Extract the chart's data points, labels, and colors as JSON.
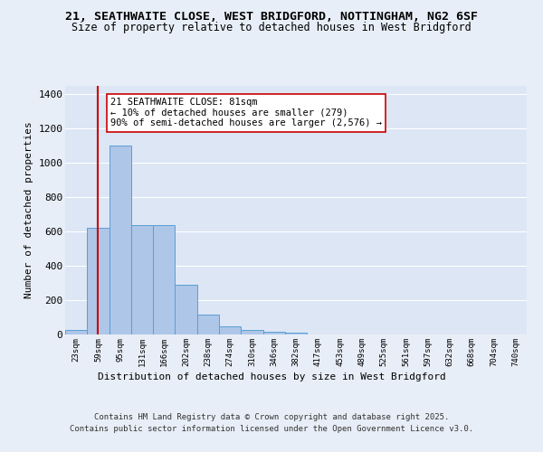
{
  "title_line1": "21, SEATHWAITE CLOSE, WEST BRIDGFORD, NOTTINGHAM, NG2 6SF",
  "title_line2": "Size of property relative to detached houses in West Bridgford",
  "xlabel": "Distribution of detached houses by size in West Bridgford",
  "ylabel": "Number of detached properties",
  "bar_labels": [
    "23sqm",
    "59sqm",
    "95sqm",
    "131sqm",
    "166sqm",
    "202sqm",
    "238sqm",
    "274sqm",
    "310sqm",
    "346sqm",
    "382sqm",
    "417sqm",
    "453sqm",
    "489sqm",
    "525sqm",
    "561sqm",
    "597sqm",
    "632sqm",
    "668sqm",
    "704sqm",
    "740sqm"
  ],
  "bar_values": [
    28,
    622,
    1100,
    637,
    637,
    290,
    115,
    47,
    28,
    18,
    10,
    0,
    0,
    0,
    0,
    0,
    0,
    0,
    0,
    0,
    0
  ],
  "bar_color": "#aec6e8",
  "bar_edge_color": "#5a9fd4",
  "vline_x": 1.0,
  "vline_color": "#cc0000",
  "annotation_text": "21 SEATHWAITE CLOSE: 81sqm\n← 10% of detached houses are smaller (279)\n90% of semi-detached houses are larger (2,576) →",
  "annotation_box_color": "#ffffff",
  "annotation_box_edge": "#cc0000",
  "background_color": "#e8eef7",
  "plot_bg_color": "#dce6f5",
  "grid_color": "#ffffff",
  "footer_line1": "Contains HM Land Registry data © Crown copyright and database right 2025.",
  "footer_line2": "Contains public sector information licensed under the Open Government Licence v3.0.",
  "ylim": [
    0,
    1450
  ],
  "yticks": [
    0,
    200,
    400,
    600,
    800,
    1000,
    1200,
    1400
  ]
}
